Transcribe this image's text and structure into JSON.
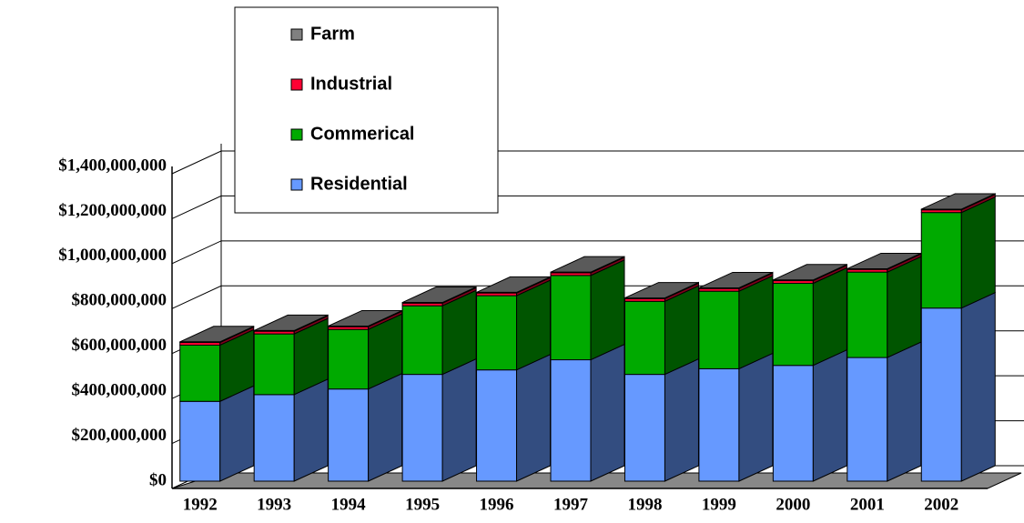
{
  "chart_data": {
    "type": "bar3d_stacked",
    "categories": [
      "1992",
      "1993",
      "1994",
      "1995",
      "1996",
      "1997",
      "1998",
      "1999",
      "2000",
      "2001",
      "2002"
    ],
    "series": [
      {
        "name": "Residential",
        "color": "#6699ff",
        "values": [
          355000000,
          385000000,
          410000000,
          475000000,
          495000000,
          540000000,
          475000000,
          500000000,
          515000000,
          550000000,
          770000000
        ]
      },
      {
        "name": "Commerical",
        "color": "#00aa00",
        "values": [
          250000000,
          270000000,
          265000000,
          305000000,
          330000000,
          375000000,
          325000000,
          345000000,
          365000000,
          380000000,
          425000000
        ]
      },
      {
        "name": "Industrial",
        "color": "#ff0033",
        "values": [
          12000000,
          12000000,
          12000000,
          12000000,
          12000000,
          12000000,
          12000000,
          12000000,
          12000000,
          12000000,
          12000000
        ]
      },
      {
        "name": "Farm",
        "color": "#808080",
        "values": [
          3000000,
          3000000,
          3000000,
          3000000,
          3000000,
          3000000,
          3000000,
          3000000,
          3000000,
          3000000,
          3000000
        ]
      }
    ],
    "ylim": [
      0,
      1400000000
    ],
    "yticks": [
      {
        "value": 0,
        "label": "$0"
      },
      {
        "value": 200000000,
        "label": "$200,000,000"
      },
      {
        "value": 400000000,
        "label": "$400,000,000"
      },
      {
        "value": 600000000,
        "label": "$600,000,000"
      },
      {
        "value": 800000000,
        "label": "$800,000,000"
      },
      {
        "value": 1000000000,
        "label": "$1,000,000,000"
      },
      {
        "value": 1200000000,
        "label": "$1,200,000,000"
      },
      {
        "value": 1400000000,
        "label": "$1,400,000,000"
      }
    ],
    "grid": true
  }
}
